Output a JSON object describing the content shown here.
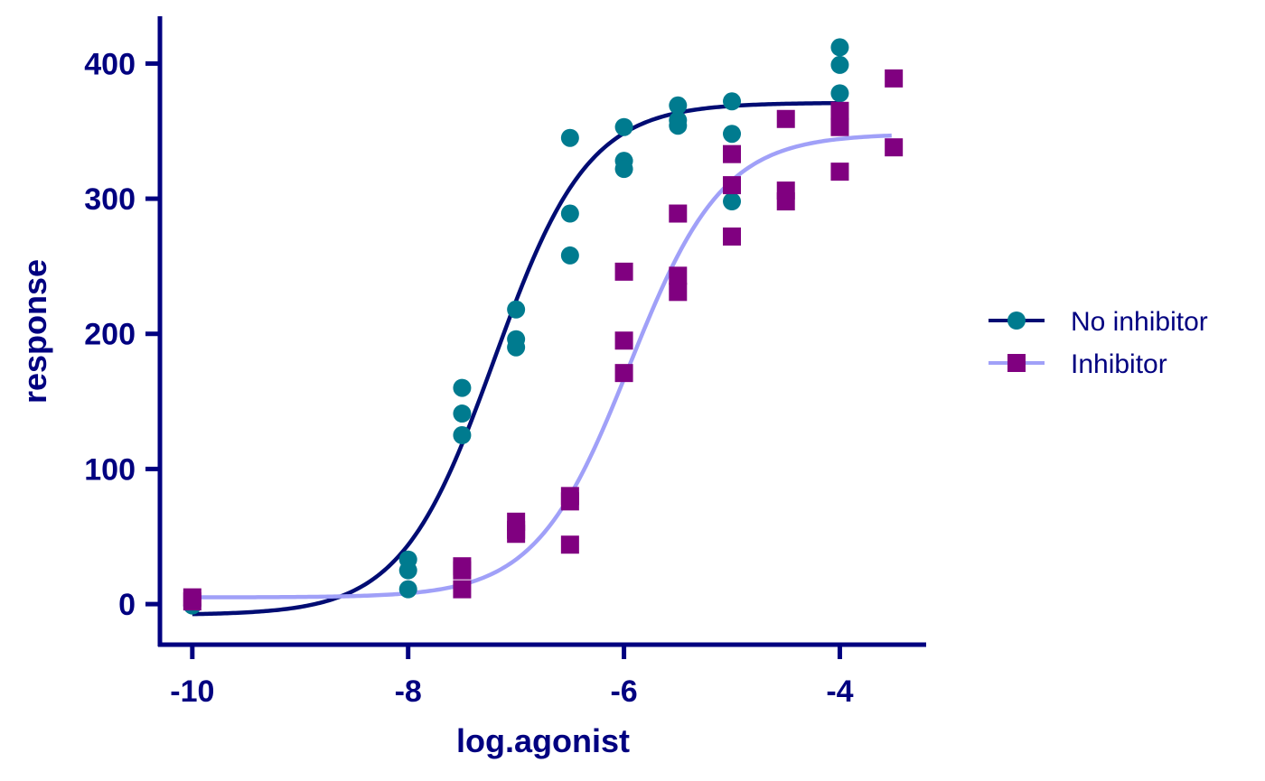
{
  "chart_data": {
    "type": "scatter",
    "title": "",
    "xlabel": "log.agonist",
    "ylabel": "response",
    "xlim": [
      -10.3,
      -3.2
    ],
    "ylim": [
      -30,
      435
    ],
    "x_ticks": [
      -10,
      -8,
      -6,
      -4
    ],
    "y_ticks": [
      0,
      100,
      200,
      300,
      400
    ],
    "grid": false,
    "legend_position": "right",
    "series": [
      {
        "name": "No inhibitor",
        "marker": "circle",
        "marker_color": "#007b8f",
        "line_color": "#000c73",
        "points": [
          [
            -10,
            -1
          ],
          [
            -8,
            33
          ],
          [
            -8,
            25
          ],
          [
            -8,
            11
          ],
          [
            -7.5,
            160
          ],
          [
            -7.5,
            141
          ],
          [
            -7.5,
            125
          ],
          [
            -7,
            218
          ],
          [
            -7,
            196
          ],
          [
            -7,
            190
          ],
          [
            -6.5,
            345
          ],
          [
            -6.5,
            289
          ],
          [
            -6.5,
            258
          ],
          [
            -6,
            353
          ],
          [
            -6,
            328
          ],
          [
            -6,
            322
          ],
          [
            -5.5,
            369
          ],
          [
            -5.5,
            358
          ],
          [
            -5.5,
            354
          ],
          [
            -5,
            372
          ],
          [
            -5,
            348
          ],
          [
            -5,
            298
          ],
          [
            -4,
            412
          ],
          [
            -4,
            399
          ],
          [
            -4,
            378
          ]
        ],
        "fit": {
          "bottom": -8,
          "top": 371,
          "logEC50": -7.2,
          "hillslope": 1.0,
          "x_range": [
            -10,
            -4
          ]
        }
      },
      {
        "name": "Inhibitor",
        "marker": "square",
        "marker_color": "#800080",
        "line_color": "#a0a0f8",
        "points": [
          [
            -10,
            5
          ],
          [
            -10,
            2
          ],
          [
            -7.5,
            28
          ],
          [
            -7.5,
            25
          ],
          [
            -7.5,
            11
          ],
          [
            -7,
            61
          ],
          [
            -7,
            55
          ],
          [
            -7,
            52
          ],
          [
            -6.5,
            80
          ],
          [
            -6.5,
            76
          ],
          [
            -6.5,
            44
          ],
          [
            -6,
            246
          ],
          [
            -6,
            195
          ],
          [
            -6,
            171
          ],
          [
            -5.5,
            289
          ],
          [
            -5.5,
            243
          ],
          [
            -5.5,
            231
          ],
          [
            -5,
            333
          ],
          [
            -5,
            310
          ],
          [
            -5,
            272
          ],
          [
            -4.5,
            359
          ],
          [
            -4.5,
            306
          ],
          [
            -4.5,
            298
          ],
          [
            -4,
            365
          ],
          [
            -4,
            353
          ],
          [
            -4,
            320
          ],
          [
            -3.5,
            389
          ],
          [
            -3.5,
            338
          ]
        ],
        "fit": {
          "bottom": 5,
          "top": 348,
          "logEC50": -5.95,
          "hillslope": 1.0,
          "x_range": [
            -10,
            -3.52
          ]
        }
      }
    ]
  }
}
